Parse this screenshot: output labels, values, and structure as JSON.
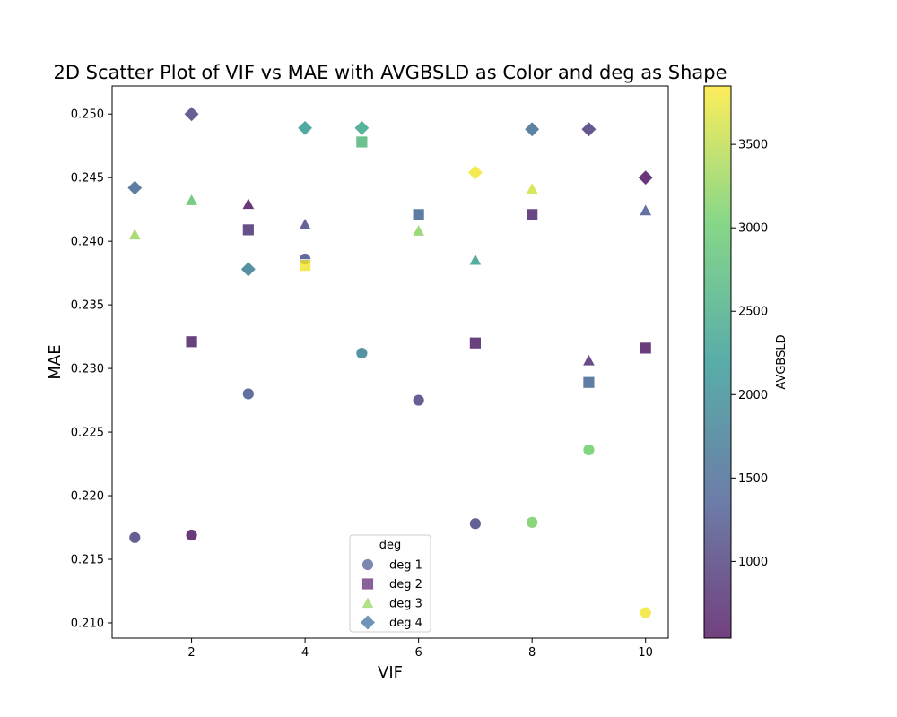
{
  "chart_data": {
    "type": "scatter",
    "title": "2D Scatter Plot of VIF vs MAE with AVGBSLD as Color and deg as Shape",
    "xlabel": "VIF",
    "ylabel": "MAE",
    "xlim": [
      0.6,
      10.4
    ],
    "ylim": [
      0.2088,
      0.2522
    ],
    "xticks": [
      2,
      4,
      6,
      8,
      10
    ],
    "yticks": [
      0.21,
      0.215,
      0.22,
      0.225,
      0.23,
      0.235,
      0.24,
      0.245,
      0.25
    ],
    "colorbar": {
      "label": "AVGBSLD",
      "range": [
        540,
        3850
      ],
      "ticks": [
        1000,
        1500,
        2000,
        2500,
        3000,
        3500
      ],
      "colormap": "viridis"
    },
    "legend": {
      "title": "deg",
      "placement": "lower-center",
      "entries": [
        {
          "label": "deg 1",
          "marker": "circle",
          "color": "#5d6a9e"
        },
        {
          "label": "deg 2",
          "marker": "square",
          "color": "#6b3a7c"
        },
        {
          "label": "deg 3",
          "marker": "triangle",
          "color": "#9fd96b"
        },
        {
          "label": "deg 4",
          "marker": "diamond",
          "color": "#4a7aa6"
        }
      ]
    },
    "series": [
      {
        "name": "deg 1",
        "marker": "circle",
        "points": [
          {
            "x": 1,
            "y": 0.2167,
            "c": 1100
          },
          {
            "x": 2,
            "y": 0.2169,
            "c": 620
          },
          {
            "x": 3,
            "y": 0.228,
            "c": 1300
          },
          {
            "x": 4,
            "y": 0.2386,
            "c": 1250
          },
          {
            "x": 5,
            "y": 0.2312,
            "c": 1900
          },
          {
            "x": 6,
            "y": 0.2275,
            "c": 1100
          },
          {
            "x": 7,
            "y": 0.2178,
            "c": 1100
          },
          {
            "x": 8,
            "y": 0.2179,
            "c": 3100
          },
          {
            "x": 9,
            "y": 0.2236,
            "c": 3050
          },
          {
            "x": 10,
            "y": 0.2108,
            "c": 3800
          }
        ]
      },
      {
        "name": "deg 2",
        "marker": "square",
        "points": [
          {
            "x": 2,
            "y": 0.2321,
            "c": 700
          },
          {
            "x": 3,
            "y": 0.2409,
            "c": 900
          },
          {
            "x": 4,
            "y": 0.2381,
            "c": 3800
          },
          {
            "x": 5,
            "y": 0.2478,
            "c": 2700
          },
          {
            "x": 6,
            "y": 0.2421,
            "c": 1500
          },
          {
            "x": 7,
            "y": 0.232,
            "c": 700
          },
          {
            "x": 8,
            "y": 0.2421,
            "c": 800
          },
          {
            "x": 9,
            "y": 0.2289,
            "c": 1500
          },
          {
            "x": 10,
            "y": 0.2316,
            "c": 650
          }
        ]
      },
      {
        "name": "deg 3",
        "marker": "triangle",
        "points": [
          {
            "x": 1,
            "y": 0.2405,
            "c": 3300
          },
          {
            "x": 2,
            "y": 0.2432,
            "c": 2900
          },
          {
            "x": 3,
            "y": 0.2429,
            "c": 600
          },
          {
            "x": 4,
            "y": 0.2413,
            "c": 1150
          },
          {
            "x": 6,
            "y": 0.2408,
            "c": 3200
          },
          {
            "x": 7,
            "y": 0.2385,
            "c": 2300
          },
          {
            "x": 8,
            "y": 0.2441,
            "c": 3600
          },
          {
            "x": 9,
            "y": 0.2306,
            "c": 850
          },
          {
            "x": 10,
            "y": 0.2424,
            "c": 1350
          }
        ]
      },
      {
        "name": "deg 4",
        "marker": "diamond",
        "points": [
          {
            "x": 1,
            "y": 0.2442,
            "c": 1500
          },
          {
            "x": 2,
            "y": 0.25,
            "c": 1100
          },
          {
            "x": 3,
            "y": 0.2378,
            "c": 1800
          },
          {
            "x": 4,
            "y": 0.2489,
            "c": 2250
          },
          {
            "x": 5,
            "y": 0.2489,
            "c": 2400
          },
          {
            "x": 7,
            "y": 0.2454,
            "c": 3800
          },
          {
            "x": 8,
            "y": 0.2488,
            "c": 1600
          },
          {
            "x": 9,
            "y": 0.2488,
            "c": 1000
          },
          {
            "x": 10,
            "y": 0.245,
            "c": 580
          }
        ]
      }
    ]
  }
}
